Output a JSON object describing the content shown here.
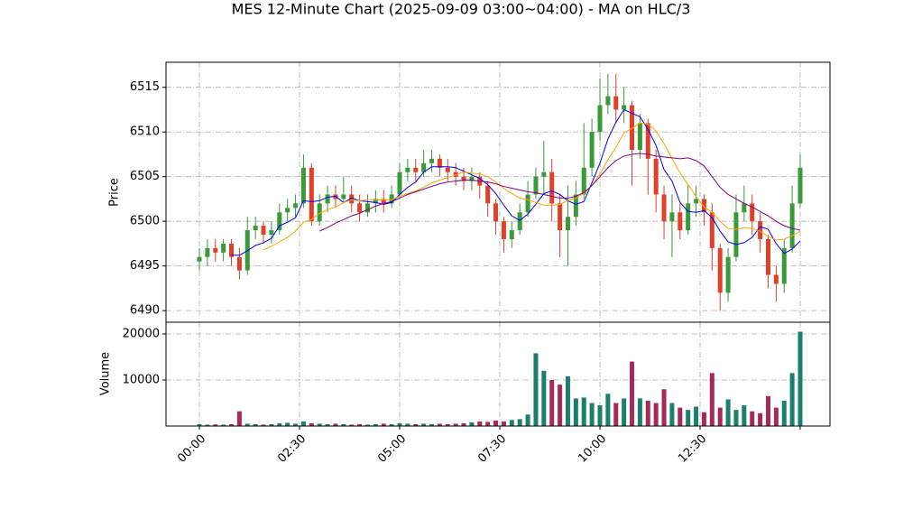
{
  "chart_data": {
    "type": "candlestick",
    "title": "MES 12-Minute Chart (2025-09-09 03:00~04:00) - MA on HLC/3",
    "ylabel": "Price",
    "grid": true,
    "up_color": "#3a9a3a",
    "down_color": "#e0402a",
    "ylim": [
      6488.7,
      6517.8
    ],
    "yticks": [
      6490,
      6495,
      6500,
      6505,
      6510,
      6515
    ],
    "x": [
      "00:00",
      "00:12",
      "00:24",
      "00:36",
      "00:48",
      "01:00",
      "01:12",
      "01:24",
      "01:36",
      "01:48",
      "02:00",
      "02:12",
      "02:24",
      "02:36",
      "02:48",
      "03:00",
      "03:12",
      "03:24",
      "03:36",
      "03:48",
      "04:00",
      "04:12",
      "04:24",
      "04:36",
      "04:48",
      "05:00",
      "05:12",
      "05:24",
      "05:36",
      "05:48",
      "06:00",
      "06:12",
      "06:24",
      "06:36",
      "06:48",
      "07:00",
      "07:12",
      "07:24",
      "07:36",
      "07:48",
      "08:00",
      "08:12",
      "08:24",
      "08:36",
      "08:48",
      "09:00",
      "09:12",
      "09:24",
      "09:36",
      "09:48",
      "10:00",
      "10:12",
      "10:24",
      "10:36",
      "10:48",
      "11:00",
      "11:12",
      "11:24",
      "11:36",
      "11:48",
      "12:00",
      "12:12",
      "12:24",
      "12:36",
      "12:48",
      "13:00",
      "13:12",
      "13:24",
      "13:36",
      "13:48",
      "14:00",
      "14:12",
      "14:24",
      "14:36",
      "14:48",
      "15:00"
    ],
    "xticks": [
      "00:00",
      "02:30",
      "05:00",
      "07:30",
      "10:00",
      "12:30",
      {
        "value": "15:00",
        "label": null
      }
    ],
    "open": [
      6495.5,
      6496,
      6497,
      6496.5,
      6497.5,
      6496,
      6494.5,
      6499,
      6499.5,
      6498.5,
      6499,
      6501,
      6501.5,
      6502,
      6506,
      6500,
      6502,
      6503,
      6502.5,
      6503,
      6502,
      6501,
      6502,
      6502.5,
      6502,
      6503,
      6505.5,
      6506,
      6505.5,
      6506.5,
      6507,
      6506,
      6505.5,
      6505,
      6504.5,
      6505,
      6504,
      6502,
      6500,
      6498,
      6499,
      6501,
      6503,
      6505,
      6505.5,
      6502,
      6499,
      6500.5,
      6503,
      6506,
      6510,
      6513,
      6514,
      6512.5,
      6513,
      6508,
      6511,
      6507,
      6503,
      6500,
      6501,
      6499,
      6502,
      6502.5,
      6501,
      6497,
      6492,
      6496,
      6501,
      6502,
      6500,
      6498,
      6494,
      6493,
      6497,
      6502
    ],
    "high": [
      6497,
      6498,
      6498,
      6498,
      6498,
      6497,
      6500.5,
      6500.5,
      6500,
      6500,
      6502,
      6502.5,
      6503,
      6507.5,
      6506.5,
      6503,
      6504,
      6504,
      6505,
      6504,
      6503,
      6503,
      6503.5,
      6503.5,
      6504,
      6506.5,
      6507,
      6507,
      6508,
      6508,
      6507.5,
      6507,
      6506.5,
      6506,
      6506,
      6505.5,
      6504.5,
      6502.5,
      6500.5,
      6500,
      6502,
      6504.5,
      6506,
      6509,
      6507,
      6503,
      6504,
      6504.5,
      6511,
      6511.5,
      6516,
      6516.5,
      6516.5,
      6515,
      6513.5,
      6512,
      6511.5,
      6508,
      6504,
      6503,
      6502,
      6504,
      6504,
      6503,
      6502,
      6497.5,
      6497,
      6503,
      6504,
      6503,
      6501,
      6498.5,
      6495,
      6498,
      6504,
      6507.5
    ],
    "low": [
      6494.5,
      6495,
      6495.5,
      6495.5,
      6495,
      6493.5,
      6494,
      6498,
      6497.5,
      6497.5,
      6498.5,
      6500,
      6500.5,
      6501.5,
      6499.5,
      6499.5,
      6501,
      6501.5,
      6502,
      6501,
      6500,
      6500.5,
      6501,
      6501,
      6501.5,
      6502.5,
      6504.5,
      6504.5,
      6505,
      6505.5,
      6505,
      6504.5,
      6504,
      6503.5,
      6503.5,
      6502.5,
      6500.5,
      6498.5,
      6496.5,
      6497,
      6498.5,
      6500.5,
      6502.5,
      6503,
      6500,
      6496,
      6495,
      6499.5,
      6502.5,
      6505,
      6509,
      6512,
      6511,
      6511,
      6504,
      6507,
      6503,
      6501,
      6498,
      6496,
      6498,
      6498.5,
      6500.5,
      6499.5,
      6494.5,
      6490,
      6491,
      6495.5,
      6500,
      6498.5,
      6496.5,
      6492.5,
      6491,
      6492,
      6496.5,
      6501.5
    ],
    "close": [
      6496,
      6497,
      6496.5,
      6497.5,
      6496,
      6494.5,
      6499,
      6499.5,
      6498.5,
      6499,
      6501,
      6501.5,
      6502,
      6506,
      6500,
      6502,
      6503,
      6502.5,
      6503,
      6502,
      6501,
      6502,
      6502.5,
      6502,
      6503,
      6505.5,
      6506,
      6505.5,
      6506.5,
      6507,
      6506,
      6505.5,
      6505,
      6504.5,
      6505,
      6504,
      6502,
      6500,
      6498,
      6499,
      6501,
      6503,
      6505,
      6505.5,
      6502,
      6499,
      6500.5,
      6503,
      6506,
      6510,
      6513,
      6514,
      6512.5,
      6513,
      6508,
      6511,
      6507,
      6503,
      6500,
      6501,
      6499,
      6502,
      6502.5,
      6501,
      6497,
      6492,
      6496,
      6501,
      6502,
      6500,
      6498,
      6494,
      6493,
      6497,
      6502,
      6506
    ],
    "series": [
      {
        "color": "#0000ff",
        "values": [
          null,
          null,
          null,
          null,
          6496.2,
          6496.2,
          6496.7,
          6497.3,
          6497.6,
          6498.1,
          6499.5,
          6499.9,
          6500.4,
          6502.3,
          6502.2,
          6502.3,
          6502.7,
          6502.8,
          6502.1,
          6502.6,
          6502.3,
          6502.2,
          6502.1,
          6501.9,
          6502.1,
          6503,
          6503.8,
          6504.4,
          6505.5,
          6506.1,
          6506.1,
          6506.1,
          6506,
          6505.6,
          6505.2,
          6504.8,
          6504.1,
          6503.1,
          6501.8,
          6500.6,
          6500.1,
          6500.8,
          6501.9,
          6503.1,
          6503.4,
          6503,
          6502.3,
          6501.9,
          6502.2,
          6504.3,
          6506.5,
          6509.2,
          6511.1,
          6512.5,
          6512.1,
          6511.7,
          6510.3,
          6508.5,
          6505.8,
          6504.5,
          6502.1,
          6501.1,
          6501,
          6501.2,
          6500.4,
          6498.9,
          6497.7,
          6497.4,
          6497.6,
          6498.2,
          6499.4,
          6499.1,
          6497.5,
          6496.4,
          6496.9,
          6497.8
        ]
      },
      {
        "color": "#ffa500",
        "values": [
          null,
          null,
          null,
          null,
          null,
          null,
          null,
          null,
          6496.8,
          6497.2,
          6497.7,
          6498.2,
          6498.9,
          6499.9,
          6500.2,
          6500.9,
          6501.3,
          6501.6,
          6502.1,
          6502.4,
          6502.3,
          6502.4,
          6502.4,
          6502.4,
          6502.4,
          6502.8,
          6503.1,
          6503.4,
          6503.8,
          6504.3,
          6504.6,
          6504.9,
          6505.2,
          6505.5,
          6505.4,
          6505.3,
          6505,
          6504.4,
          6503.7,
          6503.1,
          6502.6,
          6502.4,
          6502.1,
          6501.8,
          6501.8,
          6501.9,
          6502.3,
          6502.6,
          6503.1,
          6504,
          6505.3,
          6506.9,
          6508.3,
          6509.9,
          6510.4,
          6511,
          6510.9,
          6510.1,
          6508.7,
          6507,
          6505.4,
          6504.1,
          6502.8,
          6501.6,
          6501,
          6500,
          6499.2,
          6499.1,
          6499.3,
          6499.2,
          6498.9,
          6498.3,
          6497.9,
          6498,
          6498.4,
          6498.9
        ]
      },
      {
        "color": "#800080",
        "values": [
          null,
          null,
          null,
          null,
          null,
          null,
          null,
          null,
          null,
          null,
          null,
          null,
          null,
          null,
          null,
          6498.9,
          6499.3,
          6499.8,
          6500.2,
          6500.6,
          6500.9,
          6501.3,
          6501.7,
          6502,
          6502.2,
          6502.6,
          6503,
          6503.3,
          6503.6,
          6503.9,
          6504.2,
          6504.4,
          6504.5,
          6504.6,
          6504.6,
          6504.5,
          6504.4,
          6504.2,
          6503.9,
          6503.7,
          6503.5,
          6503.3,
          6503.2,
          6503,
          6502.8,
          6502.6,
          6502.6,
          6502.8,
          6503.2,
          6504,
          6505,
          6506,
          6506.8,
          6507.3,
          6507.5,
          6507.6,
          6507.5,
          6507.3,
          6507.2,
          6507.1,
          6507,
          6507.1,
          6506.8,
          6506.2,
          6505,
          6503.8,
          6503,
          6502.5,
          6502,
          6501.6,
          6501.1,
          6500.6,
          6500,
          6499.5,
          6499.2,
          6499
        ]
      }
    ],
    "volume": {
      "ylabel": "Volume",
      "up_color": "#1b7f6e",
      "down_color": "#a52a5a",
      "ylim": [
        0,
        22550
      ],
      "yticks": [
        10000,
        20000
      ],
      "values": [
        400,
        300,
        350,
        300,
        400,
        3200,
        500,
        400,
        300,
        400,
        600,
        700,
        500,
        1000,
        600,
        500,
        400,
        500,
        400,
        300,
        400,
        300,
        400,
        500,
        400,
        600,
        500,
        400,
        500,
        400,
        500,
        400,
        500,
        600,
        800,
        1000,
        900,
        1200,
        1000,
        1300,
        1500,
        2500,
        15800,
        12000,
        10000,
        9000,
        10800,
        6000,
        6200,
        5000,
        4500,
        7000,
        5000,
        6000,
        14000,
        6000,
        5500,
        5000,
        8000,
        5000,
        4000,
        3500,
        4200,
        3000,
        11500,
        4000,
        5800,
        3500,
        4500,
        3200,
        2800,
        6500,
        4000,
        5500,
        11500,
        20500
      ]
    }
  }
}
